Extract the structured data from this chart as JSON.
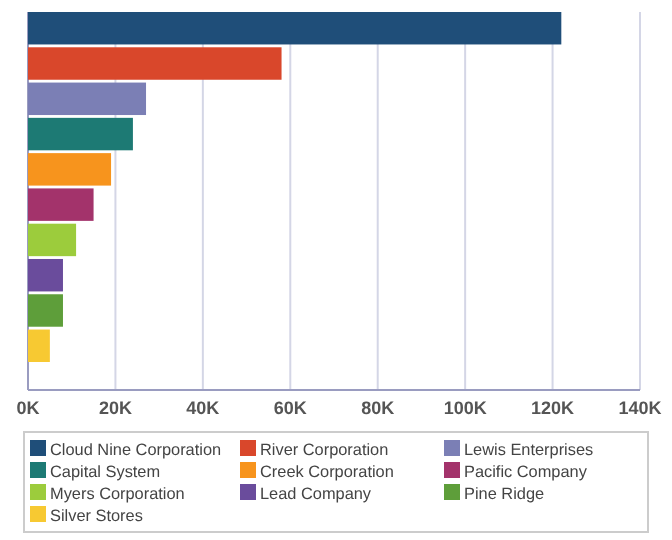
{
  "chart_data": {
    "type": "bar",
    "orientation": "horizontal",
    "categories": [
      null,
      null,
      null,
      null,
      null,
      null,
      null,
      null,
      null,
      null
    ],
    "series": [
      {
        "name": "Cloud Nine Corporation",
        "color": "#1f4e79",
        "values": [
          122000,
          null,
          null,
          null,
          null,
          null,
          null,
          null,
          null,
          null
        ]
      },
      {
        "name": "River Corporation",
        "color": "#d9472b",
        "values": [
          null,
          58000,
          null,
          null,
          null,
          null,
          null,
          null,
          null,
          null
        ]
      },
      {
        "name": "Lewis Enterprises",
        "color": "#7b7fb5",
        "values": [
          null,
          null,
          27000,
          null,
          null,
          null,
          null,
          null,
          null,
          null
        ]
      },
      {
        "name": "Capital System",
        "color": "#1d7a74",
        "values": [
          null,
          null,
          null,
          24000,
          null,
          null,
          null,
          null,
          null,
          null
        ]
      },
      {
        "name": "Creek Corporation",
        "color": "#f7941d",
        "values": [
          null,
          null,
          null,
          null,
          19000,
          null,
          null,
          null,
          null,
          null
        ]
      },
      {
        "name": "Pacific Company",
        "color": "#a3336b",
        "values": [
          null,
          null,
          null,
          null,
          null,
          15000,
          null,
          null,
          null,
          null
        ]
      },
      {
        "name": "Myers Corporation",
        "color": "#9ccc3c",
        "values": [
          null,
          null,
          null,
          null,
          null,
          null,
          11000,
          null,
          null,
          null
        ]
      },
      {
        "name": "Lead Company",
        "color": "#6a4c9c",
        "values": [
          null,
          null,
          null,
          null,
          null,
          null,
          null,
          8000,
          null,
          null
        ]
      },
      {
        "name": "Pine Ridge",
        "color": "#5e9e3a",
        "values": [
          null,
          null,
          null,
          null,
          null,
          null,
          null,
          null,
          8000,
          null
        ]
      },
      {
        "name": "Silver Stores",
        "color": "#f7c932",
        "values": [
          null,
          null,
          null,
          null,
          null,
          null,
          null,
          null,
          null,
          5000
        ]
      }
    ],
    "xlim": [
      0,
      140000
    ],
    "xticks": [
      {
        "value": 0,
        "label": "0K"
      },
      {
        "value": 20000,
        "label": "20K"
      },
      {
        "value": 40000,
        "label": "40K"
      },
      {
        "value": 60000,
        "label": "60K"
      },
      {
        "value": 80000,
        "label": "80K"
      },
      {
        "value": 100000,
        "label": "100K"
      },
      {
        "value": 120000,
        "label": "120K"
      },
      {
        "value": 140000,
        "label": "140K"
      }
    ],
    "stacked": true,
    "grid": "x",
    "legend": "bottom",
    "tick_labels": "x"
  }
}
